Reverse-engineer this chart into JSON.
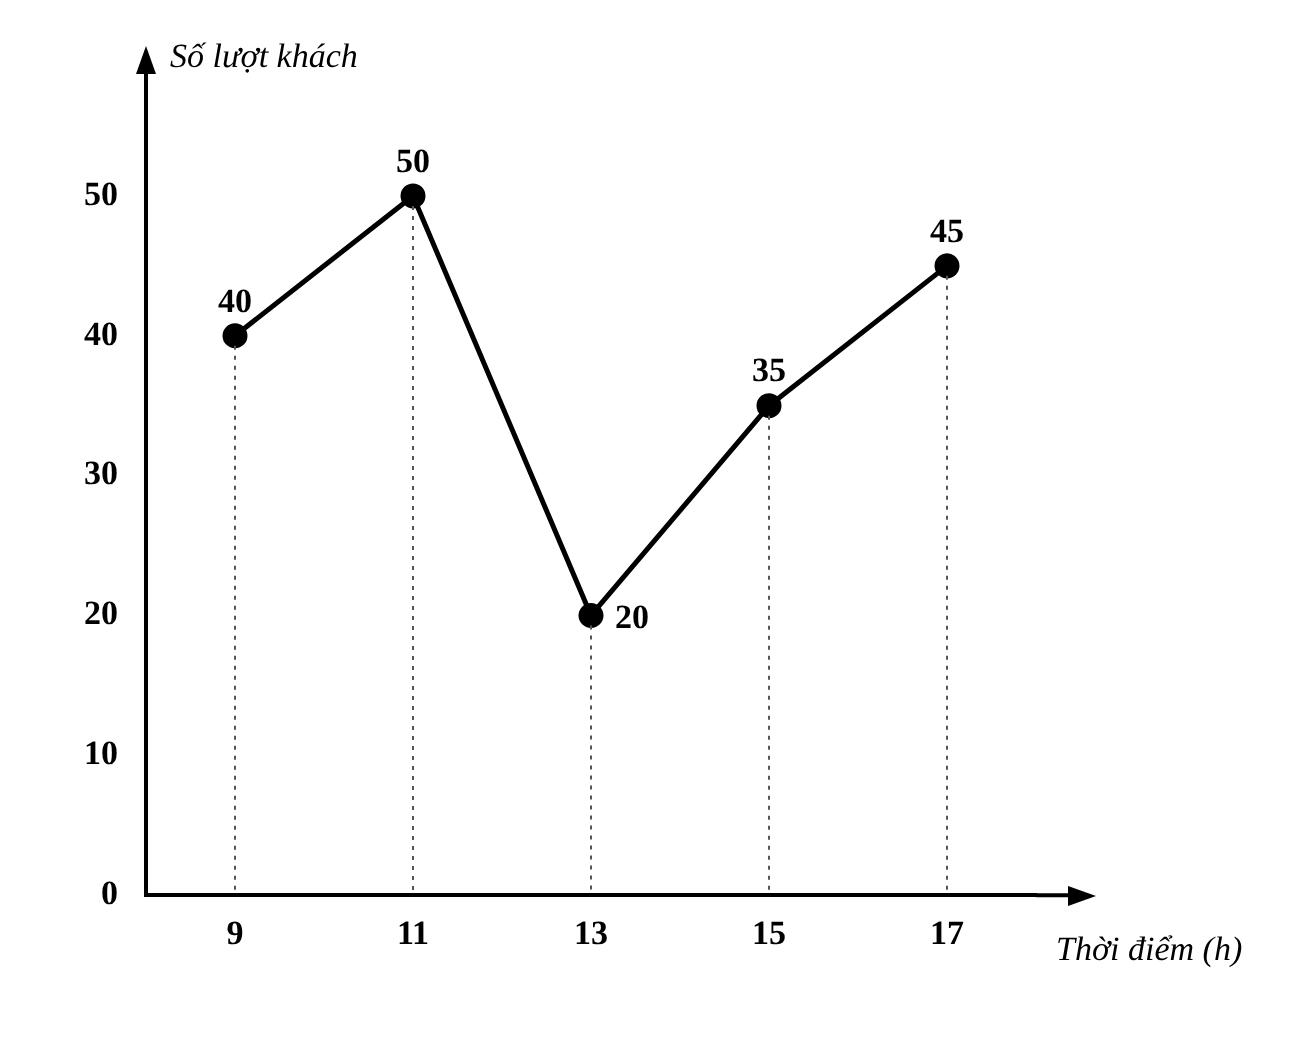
{
  "chart_data": {
    "type": "line",
    "xlabel": "Thời điểm (h)",
    "ylabel": "Số lượt khách",
    "categories": [
      "9",
      "11",
      "13",
      "15",
      "17"
    ],
    "series": [
      {
        "color": "#000000",
        "values": [
          40,
          50,
          20,
          35,
          45
        ]
      }
    ],
    "ylim": [
      0,
      55
    ],
    "yticks": [
      0,
      10,
      20,
      30,
      40,
      50
    ],
    "data_labels": true,
    "marker": "circle",
    "line_style": "solid",
    "grid": "x",
    "legend": false
  }
}
